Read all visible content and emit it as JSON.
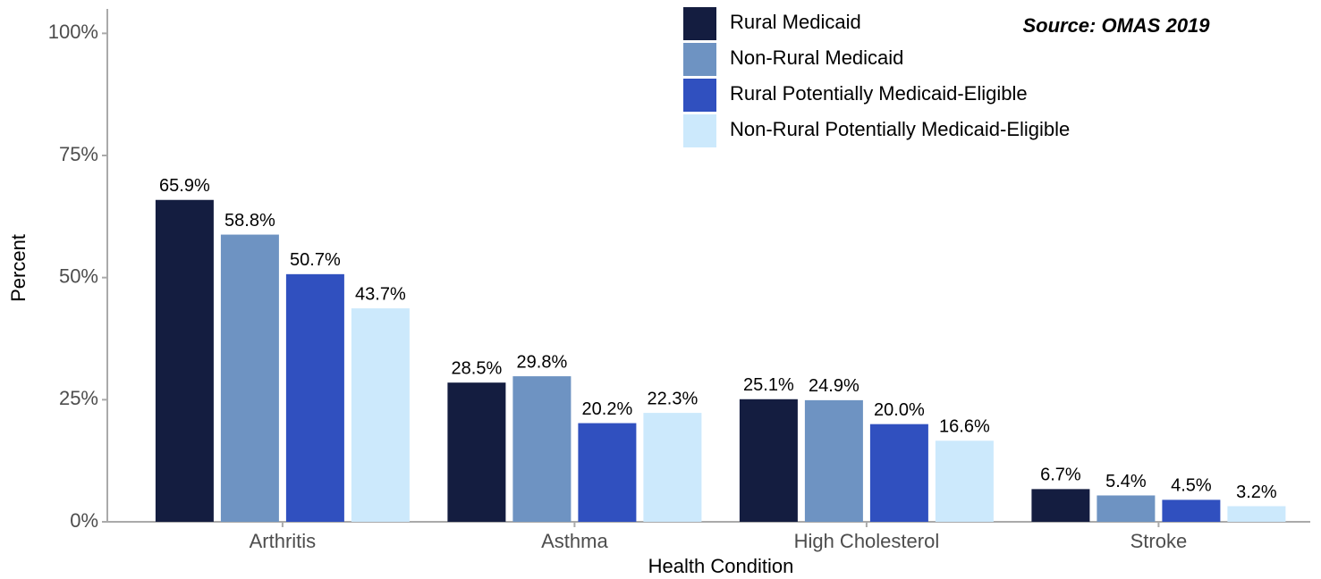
{
  "chart_data": {
    "type": "bar",
    "annotation": "Source: OMAS 2019",
    "xlabel": "Health Condition",
    "ylabel": "Percent",
    "categories": [
      "Arthritis",
      "Asthma",
      "High Cholesterol",
      "Stroke"
    ],
    "series": [
      {
        "name": "Rural Medicaid",
        "color": "#141d40",
        "values": [
          65.9,
          28.5,
          25.1,
          6.7
        ],
        "value_labels": [
          "65.9%",
          "28.5%",
          "25.1%",
          "6.7%"
        ]
      },
      {
        "name": "Non-Rural Medicaid",
        "color": "#6e93c2",
        "values": [
          58.8,
          29.8,
          24.9,
          5.4
        ],
        "value_labels": [
          "58.8%",
          "29.8%",
          "24.9%",
          "5.4%"
        ]
      },
      {
        "name": "Rural Potentially Medicaid-Eligible",
        "color": "#3050bf",
        "values": [
          50.7,
          20.2,
          20.0,
          4.5
        ],
        "value_labels": [
          "50.7%",
          "20.2%",
          "20.0%",
          "4.5%"
        ]
      },
      {
        "name": "Non-Rural Potentially Medicaid-Eligible",
        "color": "#cce9fc",
        "values": [
          43.7,
          22.3,
          16.6,
          3.2
        ],
        "value_labels": [
          "43.7%",
          "22.3%",
          "16.6%",
          "3.2%"
        ]
      }
    ],
    "ylim": [
      0,
      105
    ],
    "yticks": [
      {
        "value": 0,
        "label": "0%"
      },
      {
        "value": 25,
        "label": "25%"
      },
      {
        "value": 50,
        "label": "50%"
      },
      {
        "value": 75,
        "label": "75%"
      },
      {
        "value": 100,
        "label": "100%"
      }
    ],
    "legend": "top"
  }
}
